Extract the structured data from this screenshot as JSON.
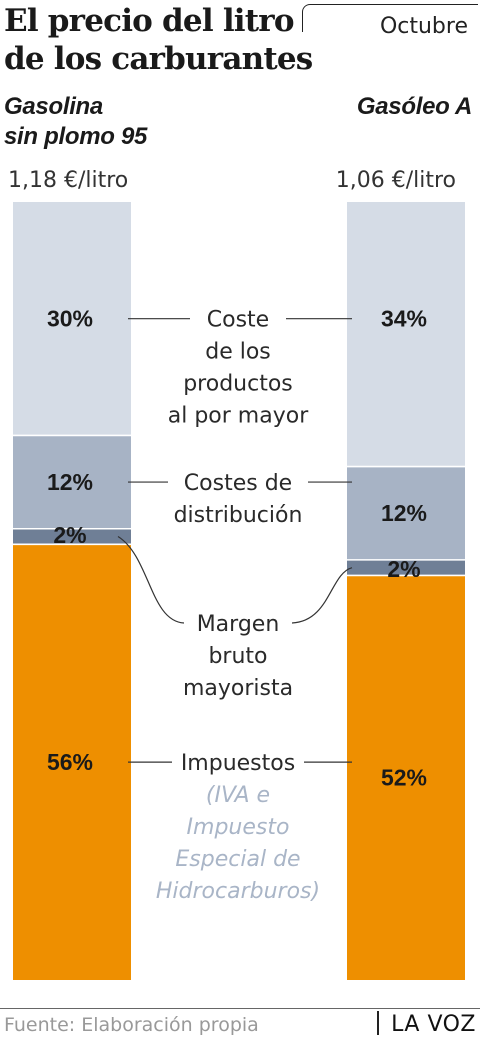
{
  "header": {
    "title_lines": [
      "El precio del litro",
      "de los carburantes"
    ],
    "month": "Octubre"
  },
  "footer": {
    "source": "Fuente: Elaboración propia",
    "brand": "LA VOZ"
  },
  "colors": {
    "productos": "#d5dce6",
    "distribucion": "#a7b3c5",
    "margen": "#6f7f96",
    "impuestos": "#ee8f00",
    "separator": "#ffffff"
  },
  "chart_data": {
    "type": "bar",
    "subtype": "stacked-100",
    "series": [
      {
        "name_lines": [
          "Gasolina",
          "sin plomo 95"
        ],
        "price": "1,18 €/litro",
        "values": [
          30,
          12,
          2,
          56
        ],
        "labels": [
          "30%",
          "12%",
          "2%",
          "56%"
        ]
      },
      {
        "name_lines": [
          "Gasóleo A"
        ],
        "price": "1,06 €/litro",
        "values": [
          34,
          12,
          2,
          52
        ],
        "labels": [
          "34%",
          "12%",
          "2%",
          "52%"
        ]
      }
    ],
    "components": [
      {
        "key": "productos",
        "label_lines": [
          "Coste",
          "de los",
          "productos",
          "al por mayor"
        ]
      },
      {
        "key": "distribucion",
        "label_lines": [
          "Costes de",
          "distribución"
        ]
      },
      {
        "key": "margen",
        "label_lines": [
          "Margen",
          "bruto",
          "mayorista"
        ]
      },
      {
        "key": "impuestos",
        "label_lines": [
          "Impuestos"
        ],
        "note_lines": [
          "(IVA e",
          "Impuesto",
          "Especial de",
          "Hidrocarburos)"
        ]
      }
    ]
  }
}
